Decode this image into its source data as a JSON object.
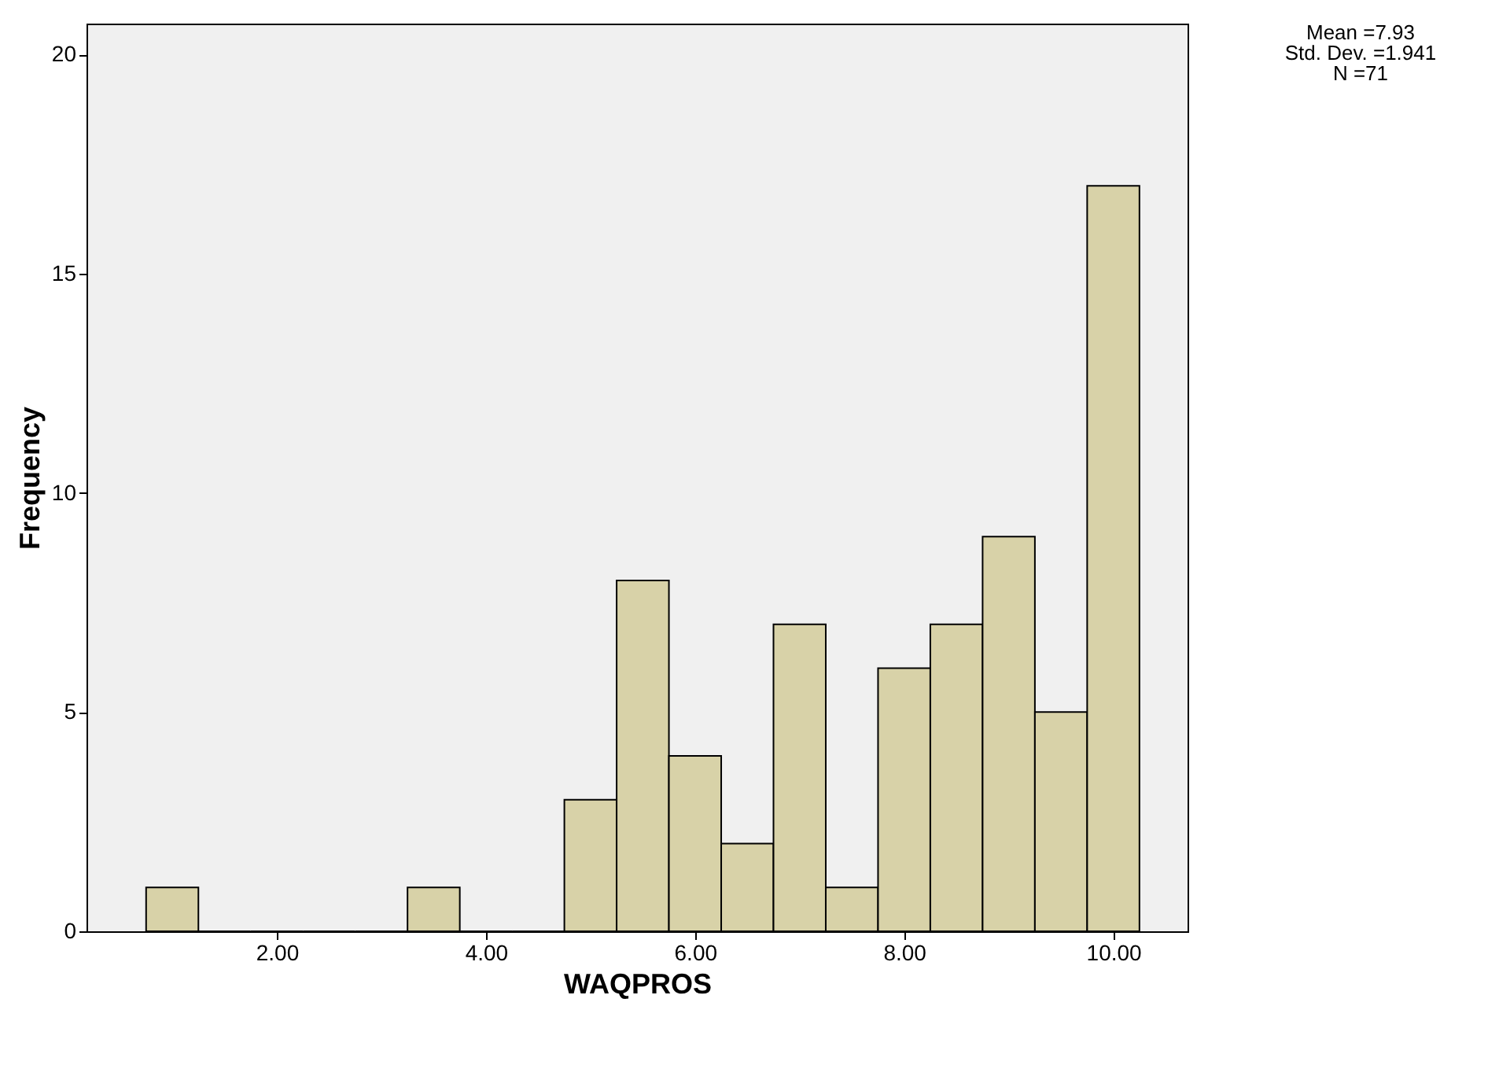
{
  "chart_data": {
    "type": "histogram",
    "xlabel": "WAQPROS",
    "ylabel": "Frequency",
    "bins": [
      0.75,
      1.25,
      1.75,
      2.25,
      2.75,
      3.25,
      3.75,
      4.25,
      4.75,
      5.25,
      5.75,
      6.25,
      6.75,
      7.25,
      7.75,
      8.25,
      8.75,
      9.25,
      9.75,
      10.25
    ],
    "values": [
      1,
      0,
      0,
      0,
      0,
      1,
      0,
      0,
      3,
      8,
      4,
      2,
      7,
      1,
      6,
      7,
      9,
      5,
      17
    ],
    "color": "#d8d2a8",
    "xlim": [
      0.18,
      10.71
    ],
    "xticks": [
      {
        "value": 2,
        "label": "2.00"
      },
      {
        "value": 4,
        "label": "4.00"
      },
      {
        "value": 6,
        "label": "6.00"
      },
      {
        "value": 8,
        "label": "8.00"
      },
      {
        "value": 10,
        "label": "10.00"
      }
    ],
    "ylim": [
      0,
      20.7
    ],
    "yticks": [
      0,
      5,
      10,
      15,
      20
    ],
    "grid": false,
    "annotations": [
      "Mean =7.93",
      "Std. Dev. =1.941",
      "N =71"
    ]
  }
}
